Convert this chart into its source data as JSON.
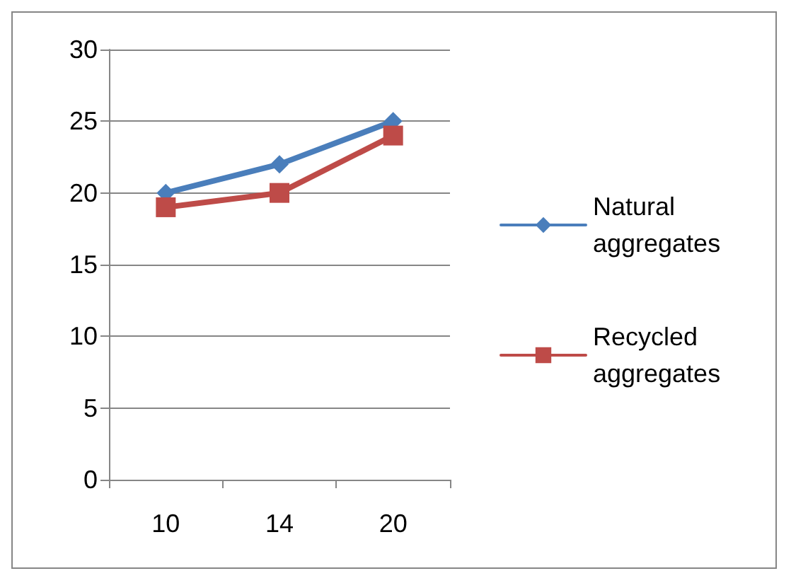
{
  "chart_data": {
    "type": "line",
    "categories": [
      "10",
      "14",
      "20"
    ],
    "series": [
      {
        "name": "Natural aggregates",
        "color": "#4a7ebb",
        "marker": "diamond",
        "values": [
          20,
          22,
          25
        ]
      },
      {
        "name": "Recycled aggregates",
        "color": "#be4b48",
        "marker": "square",
        "values": [
          19,
          20,
          24
        ]
      }
    ],
    "ylim": [
      0,
      30
    ],
    "yticks": [
      0,
      5,
      10,
      15,
      20,
      25,
      30
    ],
    "grid": "y",
    "legend": "right",
    "line_style": "solid"
  }
}
